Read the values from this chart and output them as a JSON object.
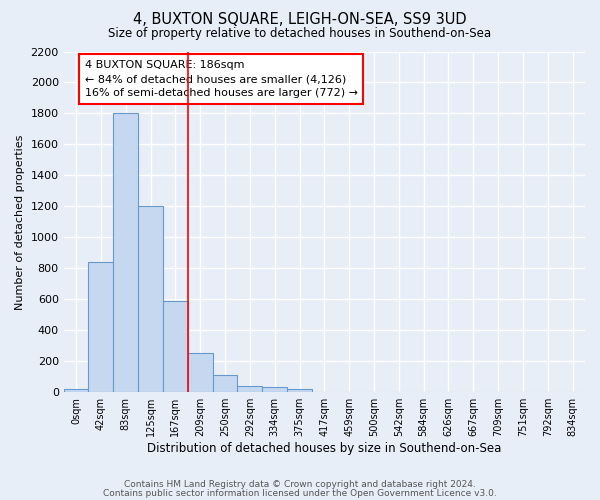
{
  "title": "4, BUXTON SQUARE, LEIGH-ON-SEA, SS9 3UD",
  "subtitle": "Size of property relative to detached houses in Southend-on-Sea",
  "xlabel": "Distribution of detached houses by size in Southend-on-Sea",
  "ylabel": "Number of detached properties",
  "bar_labels": [
    "0sqm",
    "42sqm",
    "83sqm",
    "125sqm",
    "167sqm",
    "209sqm",
    "250sqm",
    "292sqm",
    "334sqm",
    "375sqm",
    "417sqm",
    "459sqm",
    "500sqm",
    "542sqm",
    "584sqm",
    "626sqm",
    "667sqm",
    "709sqm",
    "751sqm",
    "792sqm",
    "834sqm"
  ],
  "bar_heights": [
    20,
    840,
    1800,
    1200,
    590,
    250,
    110,
    40,
    35,
    20,
    0,
    0,
    0,
    0,
    0,
    0,
    0,
    0,
    0,
    0,
    0
  ],
  "bar_color": "#c5d8f0",
  "bar_edge_color": "#6699cc",
  "annotation_line1": "4 BUXTON SQUARE: 186sqm",
  "annotation_line2": "← 84% of detached houses are smaller (4,126)",
  "annotation_line3": "16% of semi-detached houses are larger (772) →",
  "vline_pos": 4.5,
  "ylim": [
    0,
    2200
  ],
  "yticks": [
    0,
    200,
    400,
    600,
    800,
    1000,
    1200,
    1400,
    1600,
    1800,
    2000,
    2200
  ],
  "bg_color": "#e8eef8",
  "grid_color": "#ffffff",
  "footer_line1": "Contains HM Land Registry data © Crown copyright and database right 2024.",
  "footer_line2": "Contains public sector information licensed under the Open Government Licence v3.0."
}
